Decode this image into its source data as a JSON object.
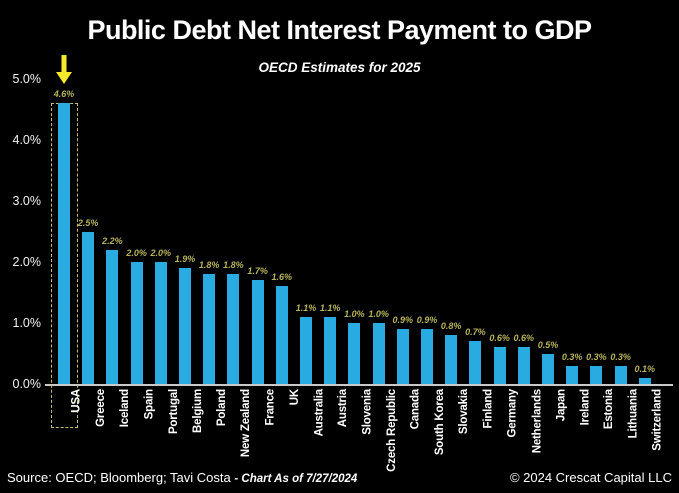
{
  "header": {
    "title": "Public Debt Net Interest Payment to GDP",
    "subtitle": "OECD Estimates for 2025"
  },
  "footer": {
    "source": "Source: OECD; Bloomberg; Tavi Costa ",
    "as_of": "- Chart As of 7/27/2024",
    "copyright": "© 2024 Crescat Capital LLC"
  },
  "annotation": {
    "highlighted_country": "USA",
    "arrow_icon": "down-arrow",
    "arrow_color": "#f3ea2d",
    "box_color": "#c9bd72"
  },
  "colors": {
    "background": "#000000",
    "bar": "#29abe2",
    "value_label": "#b9b45c",
    "axis_text": "#f2f2f2"
  },
  "chart_data": {
    "type": "bar",
    "title": "Public Debt Net Interest Payment to GDP",
    "subtitle": "OECD Estimates for 2025",
    "categories": [
      "USA",
      "Greece",
      "Iceland",
      "Spain",
      "Portugal",
      "Belgium",
      "Poland",
      "New Zealand",
      "France",
      "UK",
      "Australia",
      "Austria",
      "Slovenia",
      "Czech Republic",
      "Canada",
      "South Korea",
      "Slovakia",
      "Finland",
      "Germany",
      "Netherlands",
      "Japan",
      "Ireland",
      "Estonia",
      "Lithuania",
      "Switzerland"
    ],
    "values": [
      4.6,
      2.5,
      2.2,
      2.0,
      2.0,
      1.9,
      1.8,
      1.8,
      1.7,
      1.6,
      1.1,
      1.1,
      1.0,
      1.0,
      0.9,
      0.9,
      0.8,
      0.7,
      0.6,
      0.6,
      0.5,
      0.3,
      0.3,
      0.3,
      0.1
    ],
    "value_labels": [
      "4.6%",
      "2.5%",
      "2.2%",
      "2.0%",
      "2.0%",
      "1.9%",
      "1.8%",
      "1.8%",
      "1.7%",
      "1.6%",
      "1.1%",
      "1.1%",
      "1.0%",
      "1.0%",
      "0.9%",
      "0.9%",
      "0.8%",
      "0.7%",
      "0.6%",
      "0.6%",
      "0.5%",
      "0.3%",
      "0.3%",
      "0.3%",
      "0.1%"
    ],
    "xlabel": "",
    "ylabel": "",
    "ylim": [
      0,
      5
    ],
    "yticks": [
      "0.0%",
      "1.0%",
      "2.0%",
      "3.0%",
      "4.0%",
      "5.0%"
    ],
    "grid": false,
    "legend": "none",
    "units": "percent of GDP"
  }
}
